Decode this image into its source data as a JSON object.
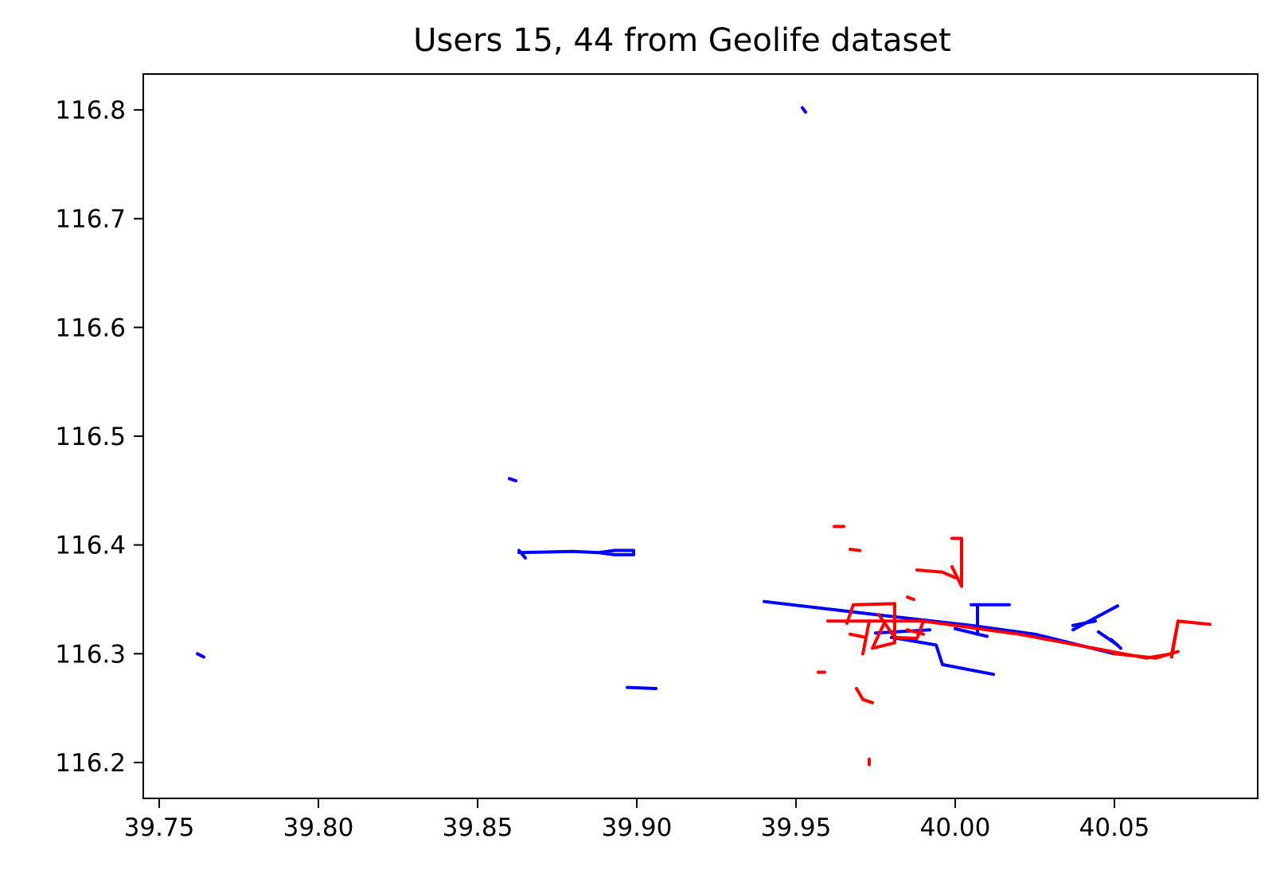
{
  "chart_data": {
    "type": "line",
    "title": "Users 15, 44 from Geolife dataset",
    "xlabel": "",
    "ylabel": "",
    "xlim": [
      39.745,
      40.095
    ],
    "ylim": [
      116.167,
      116.833
    ],
    "xticks": [
      39.75,
      39.8,
      39.85,
      39.9,
      39.95,
      40.0,
      40.05
    ],
    "xtick_labels": [
      "39.75",
      "39.80",
      "39.85",
      "39.90",
      "39.95",
      "40.00",
      "40.05"
    ],
    "yticks": [
      116.2,
      116.3,
      116.4,
      116.5,
      116.6,
      116.7,
      116.8
    ],
    "ytick_labels": [
      "116.2",
      "116.3",
      "116.4",
      "116.5",
      "116.6",
      "116.7",
      "116.8"
    ],
    "grid": false,
    "series": [
      {
        "color": "#0000ff",
        "segments": [
          [
            [
              39.952,
              116.802
            ],
            [
              39.953,
              116.798
            ]
          ],
          [
            [
              39.762,
              116.3
            ],
            [
              39.764,
              116.297
            ]
          ],
          [
            [
              39.86,
              116.461
            ],
            [
              39.862,
              116.459
            ]
          ],
          [
            [
              39.863,
              116.393
            ],
            [
              39.88,
              116.394
            ],
            [
              39.888,
              116.393
            ],
            [
              39.893,
              116.391
            ],
            [
              39.899,
              116.391
            ],
            [
              39.899,
              116.395
            ],
            [
              39.893,
              116.395
            ],
            [
              39.888,
              116.393
            ]
          ],
          [
            [
              39.863,
              116.395
            ],
            [
              39.865,
              116.388
            ]
          ],
          [
            [
              39.897,
              116.269
            ],
            [
              39.906,
              116.268
            ]
          ],
          [
            [
              39.94,
              116.348
            ],
            [
              39.975,
              116.336
            ],
            [
              40.005,
              116.326
            ],
            [
              40.025,
              116.318
            ],
            [
              40.05,
              116.3
            ]
          ],
          [
            [
              40.005,
              116.345
            ],
            [
              40.017,
              116.345
            ]
          ],
          [
            [
              40.007,
              116.345
            ],
            [
              40.007,
              116.318
            ]
          ],
          [
            [
              39.98,
              116.315
            ],
            [
              39.994,
              116.308
            ],
            [
              39.996,
              116.29
            ],
            [
              40.012,
              116.281
            ]
          ],
          [
            [
              39.975,
              116.319
            ],
            [
              39.992,
              116.322
            ]
          ],
          [
            [
              40.0,
              116.323
            ],
            [
              40.01,
              116.316
            ]
          ],
          [
            [
              40.037,
              116.322
            ],
            [
              40.051,
              116.344
            ]
          ],
          [
            [
              40.037,
              116.326
            ],
            [
              40.044,
              116.33
            ]
          ],
          [
            [
              40.045,
              116.32
            ],
            [
              40.051,
              116.308
            ]
          ],
          [
            [
              40.049,
              116.313
            ],
            [
              40.052,
              116.305
            ]
          ]
        ]
      },
      {
        "color": "#ff0000",
        "segments": [
          [
            [
              39.96,
              116.33
            ],
            [
              39.99,
              116.33
            ],
            [
              40.02,
              116.318
            ],
            [
              40.04,
              116.307
            ],
            [
              40.06,
              116.296
            ],
            [
              40.068,
              116.3
            ],
            [
              40.07,
              116.33
            ],
            [
              40.08,
              116.327
            ]
          ],
          [
            [
              40.05,
              116.3
            ],
            [
              40.063,
              116.296
            ],
            [
              40.07,
              116.302
            ]
          ],
          [
            [
              40.068,
              116.297
            ],
            [
              40.07,
              116.33
            ]
          ],
          [
            [
              39.966,
              116.328
            ],
            [
              39.968,
              116.345
            ],
            [
              39.981,
              116.346
            ],
            [
              39.981,
              116.31
            ],
            [
              39.974,
              116.305
            ],
            [
              39.978,
              116.33
            ]
          ],
          [
            [
              39.976,
              116.336
            ],
            [
              39.981,
              116.315
            ],
            [
              39.988,
              116.314
            ],
            [
              39.99,
              116.33
            ]
          ],
          [
            [
              39.999,
              116.406
            ],
            [
              40.002,
              116.406
            ],
            [
              40.002,
              116.362
            ],
            [
              39.999,
              116.38
            ]
          ],
          [
            [
              39.988,
              116.377
            ],
            [
              39.996,
              116.375
            ],
            [
              40.0,
              116.37
            ]
          ],
          [
            [
              39.962,
              116.417
            ],
            [
              39.965,
              116.417
            ]
          ],
          [
            [
              39.967,
              116.396
            ],
            [
              39.97,
              116.395
            ]
          ],
          [
            [
              39.971,
              116.3
            ],
            [
              39.973,
              116.33
            ]
          ],
          [
            [
              39.957,
              116.283
            ],
            [
              39.959,
              116.283
            ]
          ],
          [
            [
              39.969,
              116.268
            ],
            [
              39.971,
              116.258
            ],
            [
              39.974,
              116.255
            ]
          ],
          [
            [
              39.973,
              116.198
            ],
            [
              39.973,
              116.203
            ]
          ],
          [
            [
              39.985,
              116.352
            ],
            [
              39.987,
              116.35
            ]
          ],
          [
            [
              39.967,
              116.318
            ],
            [
              39.972,
              116.315
            ]
          ],
          [
            [
              39.985,
              116.322
            ],
            [
              39.99,
              116.318
            ]
          ]
        ]
      }
    ]
  }
}
